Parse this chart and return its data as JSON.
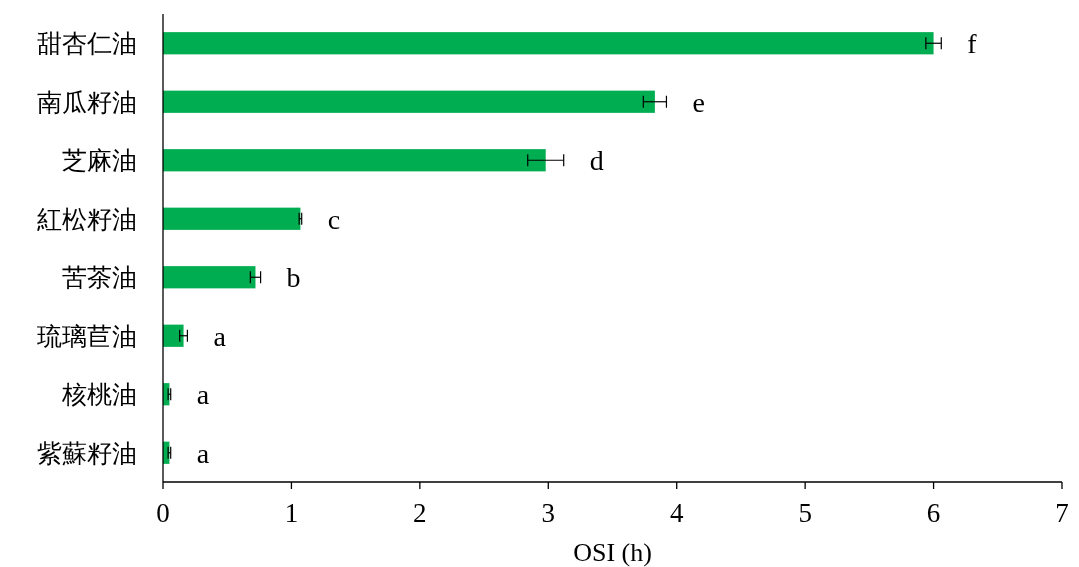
{
  "chart_data": {
    "type": "bar",
    "orientation": "horizontal",
    "xlabel": "OSI (h)",
    "categories": [
      "甜杏仁油",
      "南瓜籽油",
      "芝麻油",
      "紅松籽油",
      "苦茶油",
      "琉璃苣油",
      "核桃油",
      "紫蘇籽油"
    ],
    "values": [
      6.0,
      3.83,
      2.98,
      1.07,
      0.72,
      0.16,
      0.05,
      0.05
    ],
    "errors": [
      0.06,
      0.09,
      0.14,
      0.01,
      0.04,
      0.03,
      0.01,
      0.01
    ],
    "color": "#00ad50",
    "xlim": [
      0,
      7
    ],
    "xticks": [
      0,
      1,
      2,
      3,
      4,
      5,
      6,
      7
    ],
    "grid": false,
    "annotations": [
      {
        "text": "f",
        "x": 6.0,
        "y": "甜杏仁油"
      },
      {
        "text": "e",
        "x": 3.83,
        "y": "南瓜籽油"
      },
      {
        "text": "d",
        "x": 2.98,
        "y": "芝麻油"
      },
      {
        "text": "c",
        "x": 1.07,
        "y": "紅松籽油"
      },
      {
        "text": "b",
        "x": 0.72,
        "y": "苦茶油"
      },
      {
        "text": "a",
        "x": 0.16,
        "y": "琉璃苣油"
      },
      {
        "text": "a",
        "x": 0.05,
        "y": "核桃油"
      },
      {
        "text": "a",
        "x": 0.05,
        "y": "紫蘇籽油"
      }
    ]
  }
}
